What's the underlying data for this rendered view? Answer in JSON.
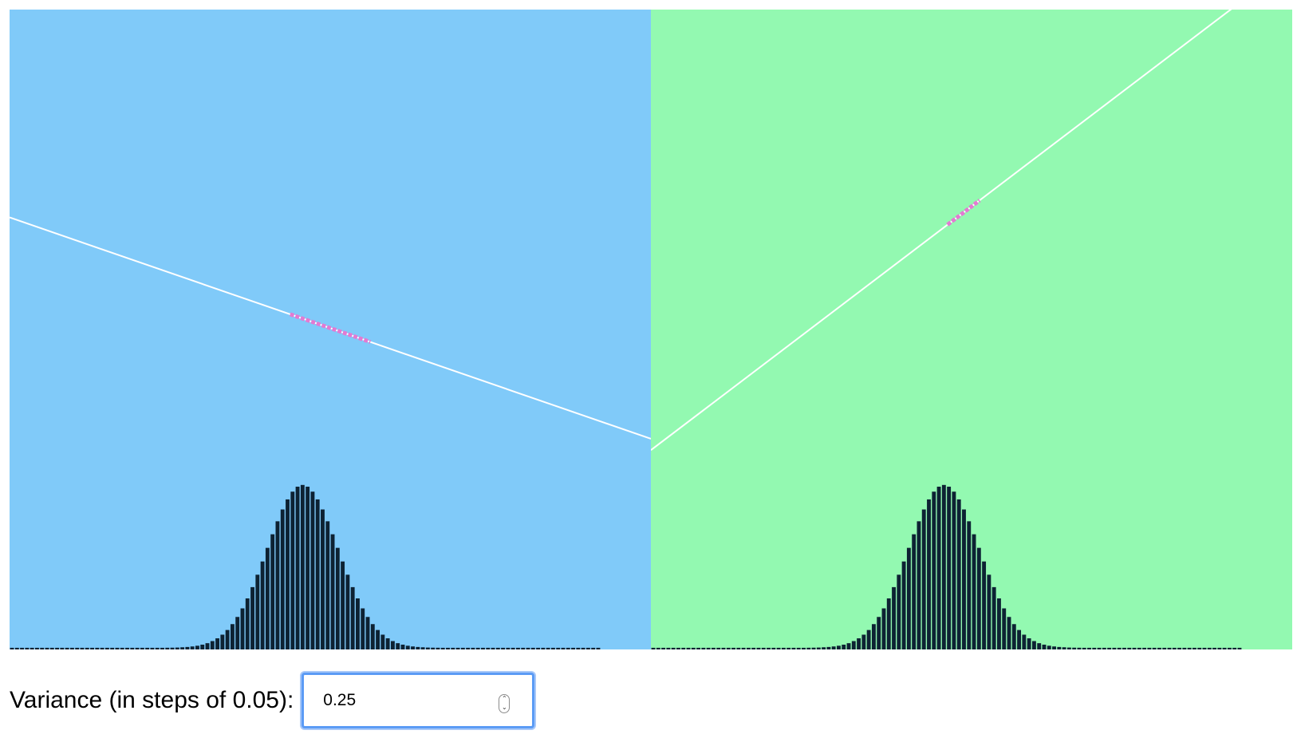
{
  "colors": {
    "left_background": "#80caf9",
    "right_background": "#93f9b1",
    "bar_fill": "#0d2233",
    "line_stroke": "#ffffff",
    "highlight_stroke": "#e37ad2"
  },
  "chart_data": [
    {
      "type": "bar",
      "title": "",
      "xlabel": "",
      "ylabel": "",
      "x_range": [
        -4,
        4
      ],
      "y_range": [
        0,
        1
      ],
      "bin_width": 0.0625,
      "variance": 0.25,
      "values": [
        0.0001,
        0.0001,
        0.0001,
        0.0001,
        0.0001,
        0.0001,
        0.0001,
        0.0001,
        0.0001,
        0.0001,
        0.0001,
        0.0001,
        0.0001,
        0.0001,
        0.0001,
        0.0001,
        0.0001,
        0.0001,
        0.0001,
        0.0001,
        0.0001,
        0.0001,
        0.0001,
        0.0001,
        0.0001,
        0.0001,
        0.0001,
        0.0001,
        0.0001,
        0.0001,
        0.0001,
        0.0002,
        0.0003,
        0.0005,
        0.0009,
        0.0014,
        0.0022,
        0.0033,
        0.005,
        0.0073,
        0.0106,
        0.0149,
        0.0206,
        0.0279,
        0.0371,
        0.0483,
        0.0617,
        0.0773,
        0.0949,
        0.1143,
        0.135,
        0.1563,
        0.1775,
        0.1978,
        0.2163,
        0.232,
        0.2441,
        0.2519,
        0.2546,
        0.2519,
        0.2441,
        0.232,
        0.2163,
        0.1978,
        0.1775,
        0.1563,
        0.135,
        0.1143,
        0.0949,
        0.0773,
        0.0617,
        0.0483,
        0.0371,
        0.0279,
        0.0206,
        0.0149,
        0.0106,
        0.0073,
        0.005,
        0.0033,
        0.0022,
        0.0014,
        0.0009,
        0.0005,
        0.0003,
        0.0002,
        0.0001,
        0.0001,
        0.0001,
        0.0001,
        0.0001,
        0.0001,
        0.0001,
        0.0001,
        0.0001,
        0.0001,
        0.0001,
        0.0001,
        0.0001,
        0.0001,
        0.0001,
        0.0001,
        0.0001,
        0.0001,
        0.0001,
        0.0001,
        0.0001,
        0.0001,
        0.0001,
        0.0001,
        0.0001,
        0.0001,
        0.0001,
        0.0001,
        0.0001,
        0.0001,
        0.0001,
        0.0001
      ],
      "line": {
        "slope": -0.04325,
        "intercept": 0.5022
      },
      "highlighted_range": [
        -0.5,
        0.5
      ],
      "grid": false,
      "legend": "none"
    },
    {
      "type": "bar",
      "title": "",
      "xlabel": "",
      "ylabel": "",
      "x_range": [
        -4,
        4
      ],
      "y_range": [
        0,
        1
      ],
      "bin_width": 0.0625,
      "variance": 0.25,
      "values": [
        0.0001,
        0.0001,
        0.0001,
        0.0001,
        0.0001,
        0.0001,
        0.0001,
        0.0001,
        0.0001,
        0.0001,
        0.0001,
        0.0001,
        0.0001,
        0.0001,
        0.0001,
        0.0001,
        0.0001,
        0.0001,
        0.0001,
        0.0001,
        0.0001,
        0.0001,
        0.0001,
        0.0001,
        0.0001,
        0.0001,
        0.0001,
        0.0001,
        0.0001,
        0.0001,
        0.0001,
        0.0002,
        0.0003,
        0.0005,
        0.0009,
        0.0014,
        0.0022,
        0.0033,
        0.005,
        0.0073,
        0.0106,
        0.0149,
        0.0206,
        0.0279,
        0.0371,
        0.0483,
        0.0617,
        0.0773,
        0.0949,
        0.1143,
        0.135,
        0.1563,
        0.1775,
        0.1978,
        0.2163,
        0.232,
        0.2441,
        0.2519,
        0.2546,
        0.2519,
        0.2441,
        0.232,
        0.2163,
        0.1978,
        0.1775,
        0.1563,
        0.135,
        0.1143,
        0.0949,
        0.0773,
        0.0617,
        0.0483,
        0.0371,
        0.0279,
        0.0206,
        0.0149,
        0.0106,
        0.0073,
        0.005,
        0.0033,
        0.0022,
        0.0014,
        0.0009,
        0.0005,
        0.0003,
        0.0002,
        0.0001,
        0.0001,
        0.0001,
        0.0001,
        0.0001,
        0.0001,
        0.0001,
        0.0001,
        0.0001,
        0.0001,
        0.0001,
        0.0001,
        0.0001,
        0.0001,
        0.0001,
        0.0001,
        0.0001,
        0.0001,
        0.0001,
        0.0001,
        0.0001,
        0.0001,
        0.0001,
        0.0001,
        0.0001,
        0.0001,
        0.0001,
        0.0001,
        0.0001,
        0.0001,
        0.0001,
        0.0001
      ],
      "line": {
        "slope": 0.0952,
        "intercept": 0.6923
      },
      "highlighted_range": [
        -0.3,
        0.1
      ],
      "grid": false,
      "legend": "none"
    }
  ],
  "controls": {
    "variance_label": "Variance (in steps of 0.05):",
    "variance_value": "0.25",
    "variance_step": "0.05",
    "spinner_up": "⌃",
    "spinner_down": "⌄"
  }
}
